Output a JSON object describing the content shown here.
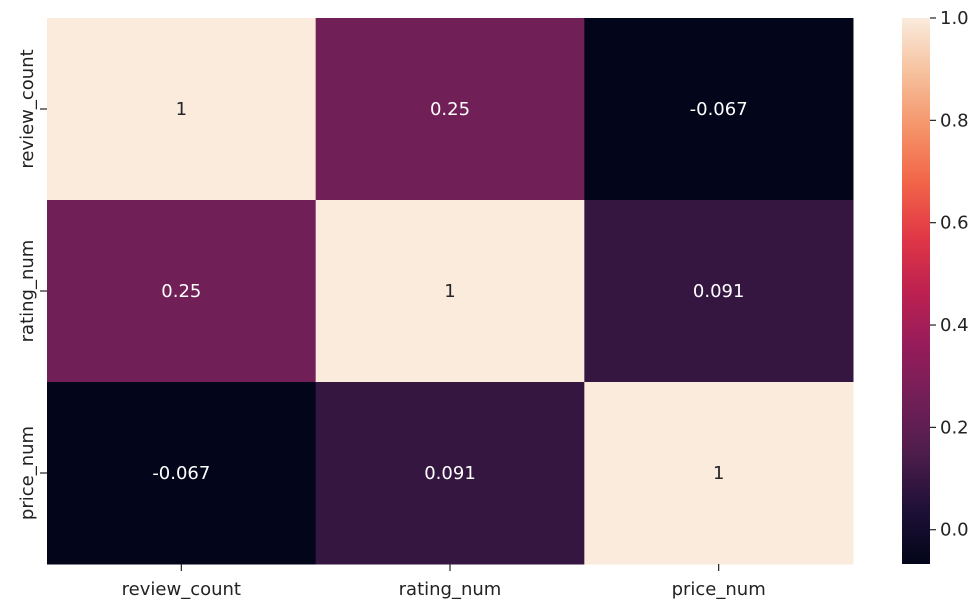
{
  "chart_data": {
    "type": "heatmap",
    "x_labels": [
      "review_count",
      "rating_num",
      "price_num"
    ],
    "y_labels": [
      "review_count",
      "rating_num",
      "price_num"
    ],
    "values": [
      [
        1,
        0.25,
        -0.067
      ],
      [
        0.25,
        1,
        0.091
      ],
      [
        -0.067,
        0.091,
        1
      ]
    ],
    "annotations": [
      [
        "1",
        "0.25",
        "-0.067"
      ],
      [
        "0.25",
        "1",
        "0.091"
      ],
      [
        "-0.067",
        "0.091",
        "1"
      ]
    ],
    "colorbar": {
      "min": -0.067,
      "max": 1.0,
      "ticks": [
        0.0,
        0.2,
        0.4,
        0.6,
        0.8,
        1.0
      ],
      "tick_labels": [
        "0.0",
        "0.2",
        "0.4",
        "0.6",
        "0.8",
        "1.0"
      ],
      "colormap": "rocket"
    },
    "title": "",
    "xlabel": "",
    "ylabel": ""
  }
}
